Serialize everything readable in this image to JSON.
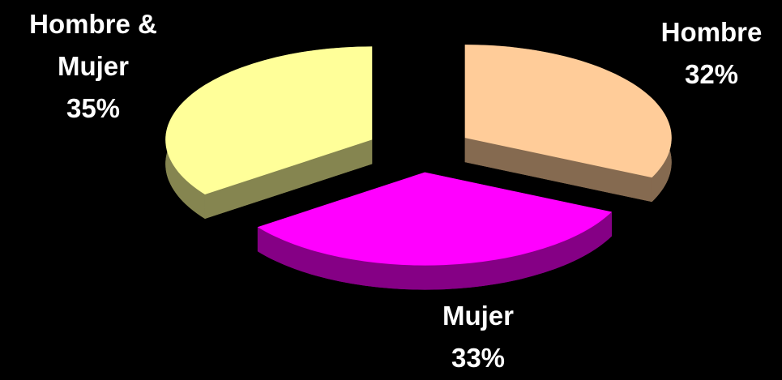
{
  "chart_data": {
    "type": "pie",
    "categories": [
      "Hombre",
      "Mujer",
      "Hombre & Mujer"
    ],
    "values": [
      32,
      33,
      35
    ],
    "value_labels": [
      "32%",
      "33%",
      "35%"
    ],
    "colors": [
      "#ffcc99",
      "#ff00ff",
      "#ffff99"
    ]
  }
}
